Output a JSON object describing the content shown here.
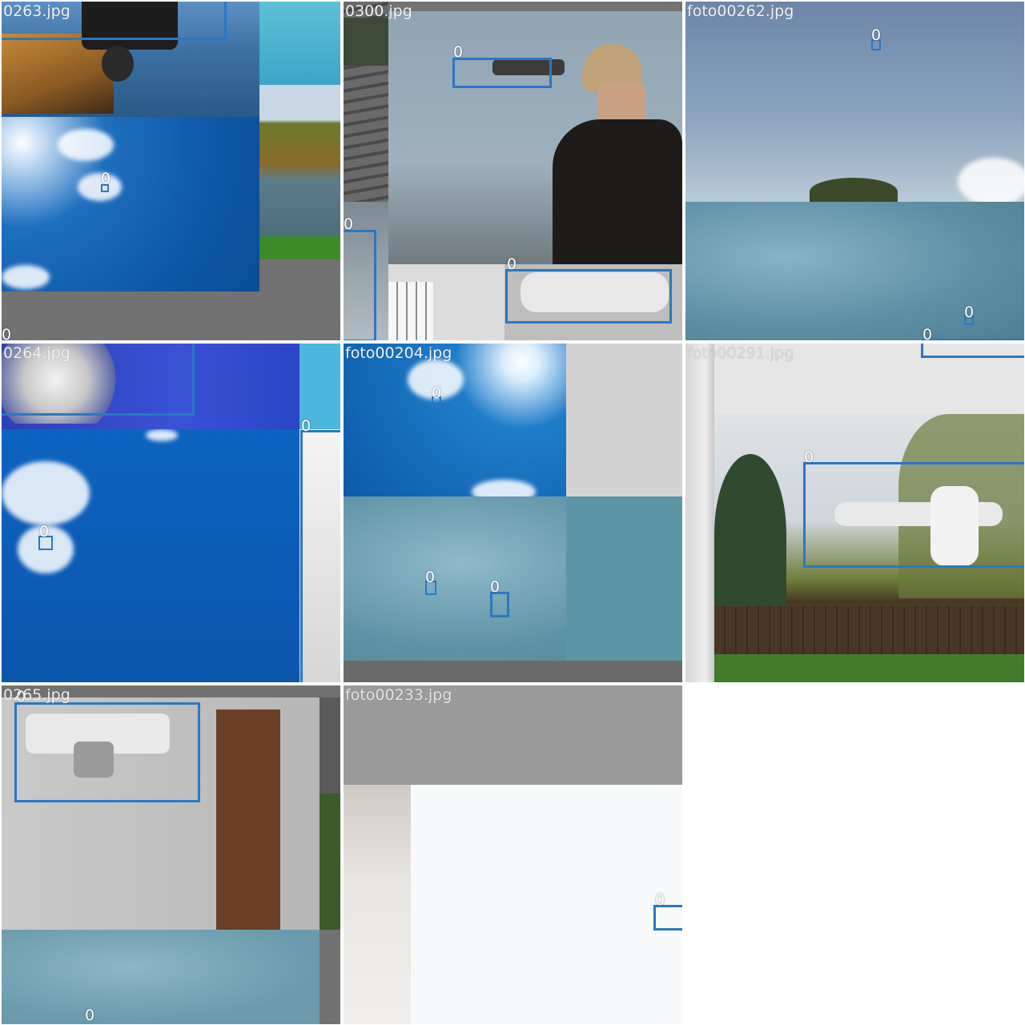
{
  "tiles": [
    {
      "label": "0263.jpg",
      "boxes": [
        "0",
        "0",
        "0"
      ]
    },
    {
      "label": "0300.jpg",
      "boxes": [
        "0",
        "0",
        "0"
      ]
    },
    {
      "label": "foto00262.jpg",
      "boxes": [
        "0",
        "0",
        "0"
      ]
    },
    {
      "label": "0264.jpg",
      "boxes": [
        "0",
        "0"
      ]
    },
    {
      "label": "foto00204.jpg",
      "boxes": [
        "0",
        "0",
        "0"
      ]
    },
    {
      "label": "foto00291.jpg",
      "boxes": [
        "0",
        "0"
      ]
    },
    {
      "label": "0265.jpg",
      "boxes": [
        "0",
        "0"
      ]
    },
    {
      "label": "foto00233.jpg",
      "boxes": [
        "0"
      ]
    }
  ],
  "colors": {
    "box": "#2a78c2",
    "pad": "#727272"
  }
}
